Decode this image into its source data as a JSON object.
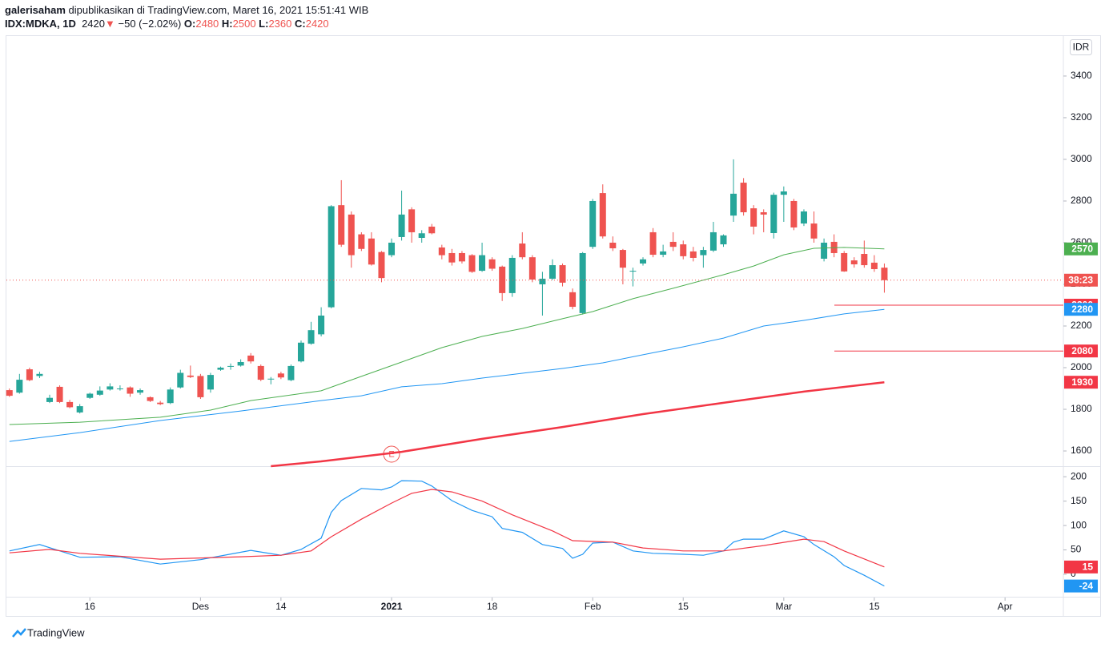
{
  "header": {
    "publisher": "galerisaham",
    "published": "dipublikasikan di TradingView.com, Maret 16, 2021 15:51:41 WIB",
    "symbol": "IDX:MDKA, 1D",
    "arrow": "▼",
    "change": "−50 (−2.02%)",
    "o_label": "O:",
    "h_label": "H:",
    "l_label": "L:",
    "c_label": "C:"
  },
  "currency": "IDR",
  "earnings_marker": "E",
  "countdown": "38:23",
  "footer": "TradingView",
  "chart_data": [
    {
      "type": "candlestick",
      "up_color": "#26a69a",
      "down_color": "#ef5350",
      "xlim": [
        -0.3,
        104.8
      ],
      "ylim": [
        1527,
        3592
      ],
      "yticks": [
        1600,
        1800,
        2000,
        2200,
        2400,
        2600,
        2800,
        3000,
        3200,
        3400
      ],
      "grid": false,
      "candles": {
        "open": [
          1892,
          1880,
          1992,
          1960,
          1835,
          1908,
          1835,
          1785,
          1855,
          1870,
          1895,
          1900,
          1905,
          1880,
          1858,
          1832,
          1830,
          1905,
          1962,
          1960,
          1895,
          1990,
          2005,
          2010,
          2058,
          2008,
          1945,
          1972,
          1940,
          2030,
          2115,
          2160,
          2290,
          2780,
          2735,
          2640,
          2620,
          2555,
          2540,
          2627,
          2760,
          2623,
          2677,
          2577,
          2550,
          2550,
          2540,
          2465,
          2520,
          2485,
          2358,
          2596,
          2530,
          2400,
          2427,
          2492,
          2362,
          2262,
          2580,
          2838,
          2600,
          2565,
          2462,
          2500,
          2650,
          2542,
          2604,
          2592,
          2558,
          2540,
          2562,
          2592,
          2730,
          2888,
          2765,
          2746,
          2646,
          2830,
          2800,
          2692,
          2692,
          2523,
          2604,
          2550,
          2515,
          2546,
          2504,
          2480
        ],
        "high": [
          1900,
          1970,
          2000,
          1980,
          1870,
          1915,
          1845,
          1825,
          1880,
          1910,
          1925,
          1915,
          1910,
          1900,
          1862,
          1840,
          1905,
          1990,
          2010,
          1970,
          1975,
          2005,
          2020,
          2040,
          2070,
          2015,
          1955,
          1980,
          2015,
          2130,
          2220,
          2290,
          2780,
          2900,
          2750,
          2650,
          2650,
          2560,
          2620,
          2850,
          2770,
          2660,
          2690,
          2590,
          2570,
          2560,
          2545,
          2600,
          2530,
          2490,
          2540,
          2650,
          2540,
          2460,
          2520,
          2500,
          2380,
          2555,
          2810,
          2880,
          2630,
          2570,
          2480,
          2530,
          2670,
          2590,
          2650,
          2610,
          2580,
          2580,
          2700,
          2640,
          3000,
          2910,
          2780,
          2760,
          2840,
          2870,
          2810,
          2760,
          2750,
          2620,
          2640,
          2560,
          2530,
          2610,
          2540,
          2500
        ],
        "low": [
          1860,
          1875,
          1935,
          1950,
          1830,
          1830,
          1805,
          1780,
          1850,
          1865,
          1890,
          1890,
          1860,
          1870,
          1835,
          1820,
          1825,
          1900,
          1950,
          1850,
          1880,
          1985,
          1990,
          2005,
          2020,
          1935,
          1920,
          1945,
          1935,
          2025,
          2110,
          2150,
          2285,
          2580,
          2480,
          2560,
          2490,
          2410,
          2530,
          2610,
          2600,
          2600,
          2640,
          2520,
          2490,
          2500,
          2455,
          2460,
          2465,
          2320,
          2340,
          2520,
          2410,
          2250,
          2420,
          2390,
          2280,
          2255,
          2570,
          2620,
          2560,
          2400,
          2390,
          2490,
          2530,
          2530,
          2560,
          2520,
          2510,
          2480,
          2555,
          2580,
          2700,
          2730,
          2640,
          2650,
          2620,
          2700,
          2660,
          2680,
          2600,
          2510,
          2530,
          2460,
          2480,
          2480,
          2460,
          2360
        ],
        "close": [
          1865,
          1942,
          1940,
          1970,
          1855,
          1835,
          1810,
          1815,
          1875,
          1890,
          1910,
          1900,
          1875,
          1892,
          1840,
          1825,
          1895,
          1975,
          1955,
          1858,
          1965,
          2000,
          2008,
          2027,
          2030,
          1942,
          1947,
          1953,
          2008,
          2120,
          2180,
          2250,
          2775,
          2590,
          2540,
          2570,
          2495,
          2430,
          2600,
          2735,
          2650,
          2645,
          2645,
          2540,
          2505,
          2510,
          2460,
          2540,
          2475,
          2358,
          2527,
          2530,
          2423,
          2427,
          2492,
          2408,
          2292,
          2550,
          2800,
          2630,
          2573,
          2480,
          2465,
          2520,
          2542,
          2558,
          2580,
          2535,
          2527,
          2565,
          2650,
          2635,
          2835,
          2746,
          2677,
          2735,
          2830,
          2846,
          2673,
          2750,
          2620,
          2600,
          2550,
          2462,
          2496,
          2492,
          2473,
          2420
        ]
      },
      "series": [
        {
          "color": "#4caf50",
          "width": 1,
          "x": [
            0,
            7,
            15,
            20,
            24,
            31,
            35,
            39,
            43,
            47,
            51,
            55,
            58,
            62,
            66,
            71,
            74,
            77,
            80,
            83,
            87
          ],
          "values": [
            1727,
            1738,
            1762,
            1796,
            1842,
            1889,
            1958,
            2027,
            2096,
            2150,
            2188,
            2235,
            2269,
            2331,
            2381,
            2446,
            2488,
            2542,
            2573,
            2577,
            2570
          ]
        },
        {
          "color": "#2196f3",
          "width": 1,
          "x": [
            0,
            7,
            15,
            23,
            31,
            35,
            39,
            43,
            47,
            51,
            55,
            59,
            63,
            67,
            71,
            75,
            79,
            83,
            87
          ],
          "values": [
            1646,
            1688,
            1746,
            1792,
            1842,
            1865,
            1908,
            1923,
            1950,
            1973,
            1996,
            2023,
            2062,
            2100,
            2142,
            2200,
            2227,
            2258,
            2280
          ]
        },
        {
          "color": "#f23645",
          "width": 2.5,
          "x": [
            26,
            31,
            39,
            47,
            55,
            63,
            71,
            79,
            87
          ],
          "values": [
            1527,
            1550,
            1596,
            1658,
            1715,
            1777,
            1831,
            1885,
            1930
          ]
        }
      ],
      "hlines": [
        {
          "value": 2300,
          "color": "#f23645"
        },
        {
          "value": 2080,
          "color": "#f23645"
        }
      ]
    },
    {
      "type": "line",
      "xlim": [
        -0.3,
        104.8
      ],
      "ylim": [
        -46,
        220
      ],
      "yticks": [
        0,
        50,
        100,
        150,
        200
      ],
      "xticks": [
        {
          "value": 8,
          "label": "16"
        },
        {
          "value": 19,
          "label": "Des"
        },
        {
          "value": 27,
          "label": "14"
        },
        {
          "value": 38,
          "label": "2021"
        },
        {
          "value": 48,
          "label": "18"
        },
        {
          "value": 58,
          "label": "Feb"
        },
        {
          "value": 67,
          "label": "15"
        },
        {
          "value": 77,
          "label": "Mar"
        },
        {
          "value": 86,
          "label": "15"
        },
        {
          "value": 99,
          "label": "Apr"
        }
      ],
      "series": [
        {
          "color": "#2196f3",
          "x": [
            0,
            3,
            7,
            11,
            15,
            19,
            24,
            27,
            29,
            31,
            32,
            33,
            35,
            37,
            38,
            39,
            41,
            42,
            44,
            46,
            48,
            49,
            51,
            53,
            55,
            56,
            57,
            58,
            60,
            62,
            64,
            67,
            69,
            71,
            72,
            73,
            75,
            77,
            79,
            80,
            82,
            83,
            85,
            87
          ],
          "values": [
            48,
            61,
            35,
            36,
            21,
            30,
            49,
            39,
            51,
            74,
            127,
            151,
            176,
            173,
            179,
            192,
            191,
            181,
            151,
            131,
            118,
            94,
            86,
            61,
            53,
            33,
            41,
            64,
            66,
            48,
            43,
            41,
            39,
            48,
            66,
            72,
            72,
            89,
            77,
            61,
            36,
            18,
            -2,
            -24
          ]
        },
        {
          "color": "#f23645",
          "x": [
            0,
            4,
            7,
            15,
            23,
            27,
            30,
            32,
            35,
            38,
            40,
            42,
            44,
            47,
            50,
            54,
            56,
            60,
            63,
            67,
            71,
            75,
            79,
            81,
            83,
            87
          ],
          "values": [
            44,
            51,
            43,
            31,
            36,
            39,
            48,
            77,
            113,
            146,
            166,
            174,
            169,
            150,
            122,
            89,
            69,
            66,
            54,
            48,
            48,
            59,
            72,
            67,
            48,
            15
          ]
        }
      ]
    }
  ]
}
